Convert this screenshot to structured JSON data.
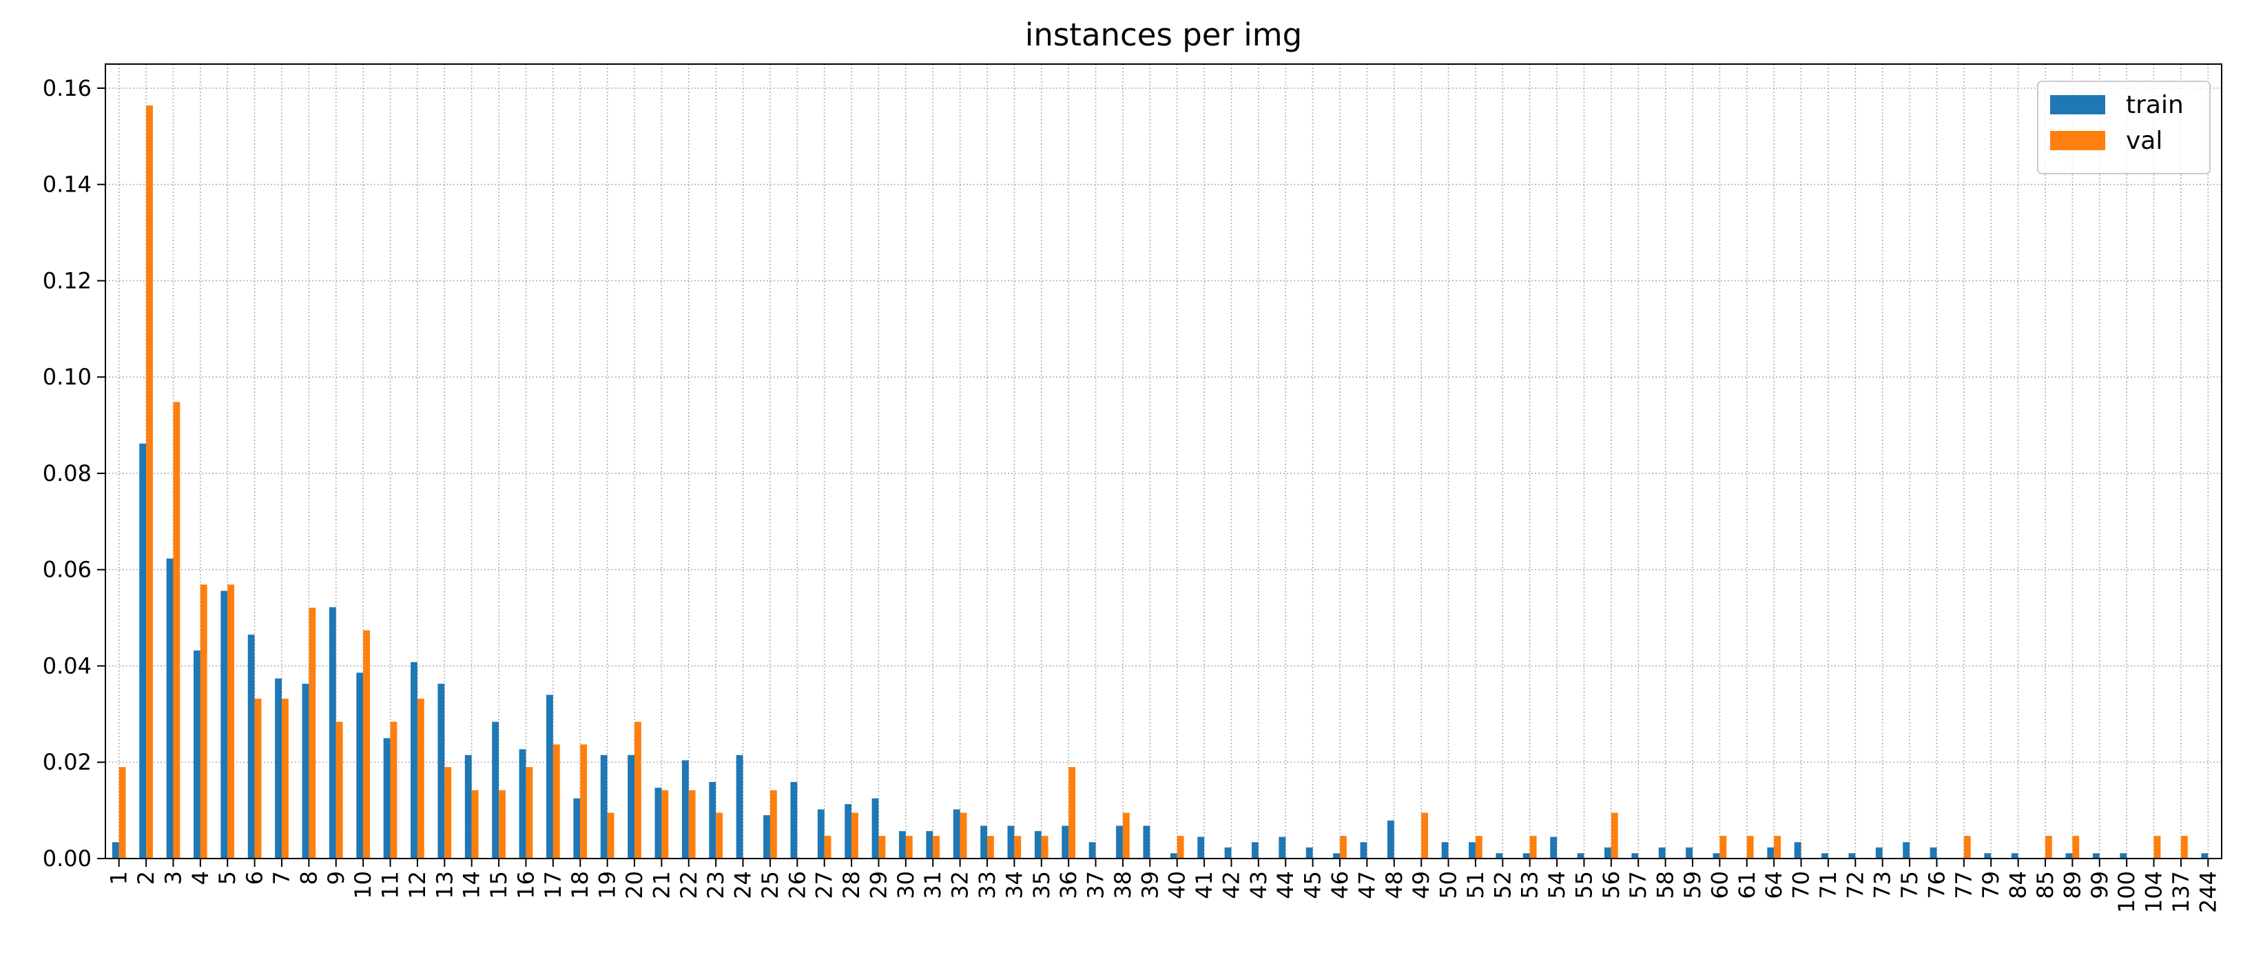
{
  "chart_data": {
    "type": "bar",
    "title": "instances per img",
    "xlabel": "",
    "ylabel": "",
    "ylim": [
      0,
      0.165
    ],
    "yticks": [
      "0.00",
      "0.02",
      "0.04",
      "0.06",
      "0.08",
      "0.10",
      "0.12",
      "0.14",
      "0.16"
    ],
    "grid": true,
    "legend_position": "top-right",
    "categories": [
      "1",
      "2",
      "3",
      "4",
      "5",
      "6",
      "7",
      "8",
      "9",
      "10",
      "11",
      "12",
      "13",
      "14",
      "15",
      "16",
      "17",
      "18",
      "19",
      "20",
      "21",
      "22",
      "23",
      "24",
      "25",
      "26",
      "27",
      "28",
      "29",
      "30",
      "31",
      "32",
      "33",
      "34",
      "35",
      "36",
      "37",
      "38",
      "39",
      "40",
      "41",
      "42",
      "43",
      "44",
      "45",
      "46",
      "47",
      "48",
      "49",
      "50",
      "51",
      "52",
      "53",
      "54",
      "55",
      "56",
      "57",
      "58",
      "59",
      "60",
      "61",
      "64",
      "70",
      "71",
      "72",
      "73",
      "75",
      "76",
      "77",
      "79",
      "84",
      "85",
      "89",
      "99",
      "100",
      "104",
      "137",
      "244"
    ],
    "series": [
      {
        "name": "train",
        "color": "#1f77b4",
        "values": [
          0.0034,
          0.0862,
          0.0623,
          0.0432,
          0.0556,
          0.0465,
          0.0374,
          0.0363,
          0.0522,
          0.0386,
          0.025,
          0.0408,
          0.0363,
          0.0215,
          0.0284,
          0.0227,
          0.034,
          0.0125,
          0.0215,
          0.0215,
          0.0147,
          0.0204,
          0.0159,
          0.0215,
          0.009,
          0.0159,
          0.0102,
          0.0113,
          0.0125,
          0.0057,
          0.0057,
          0.0102,
          0.0068,
          0.0068,
          0.0057,
          0.0068,
          0.0034,
          0.0068,
          0.0068,
          0.0011,
          0.0045,
          0.0023,
          0.0034,
          0.0045,
          0.0023,
          0.0011,
          0.0034,
          0.0079,
          0,
          0.0034,
          0.0034,
          0.0011,
          0.0011,
          0.0045,
          0.0011,
          0.0023,
          0.0011,
          0.0023,
          0.0023,
          0.0011,
          0,
          0.0023,
          0.0034,
          0.0011,
          0.0011,
          0.0023,
          0.0034,
          0.0023,
          0,
          0.0011,
          0.0011,
          0,
          0.0011,
          0.0011,
          0.0011,
          0,
          0,
          0.0011
        ]
      },
      {
        "name": "val",
        "color": "#ff7f0e",
        "values": [
          0.019,
          0.1564,
          0.0948,
          0.0569,
          0.0569,
          0.0332,
          0.0332,
          0.0521,
          0.0284,
          0.0474,
          0.0284,
          0.0332,
          0.019,
          0.0142,
          0.0142,
          0.019,
          0.0237,
          0.0237,
          0.0095,
          0.0284,
          0.0142,
          0.0142,
          0.0095,
          0,
          0.0142,
          0,
          0.0047,
          0.0095,
          0.0047,
          0.0047,
          0.0047,
          0.0095,
          0.0047,
          0.0047,
          0.0047,
          0.019,
          0,
          0.0095,
          0,
          0.0047,
          0,
          0,
          0,
          0,
          0,
          0.0047,
          0,
          0,
          0.0095,
          0,
          0.0047,
          0,
          0.0047,
          0,
          0,
          0.0095,
          0,
          0,
          0,
          0.0047,
          0.0047,
          0.0047,
          0,
          0,
          0,
          0,
          0,
          0,
          0.0047,
          0,
          0,
          0.0047,
          0.0047,
          0,
          0,
          0.0047,
          0.0047,
          0
        ]
      }
    ]
  }
}
